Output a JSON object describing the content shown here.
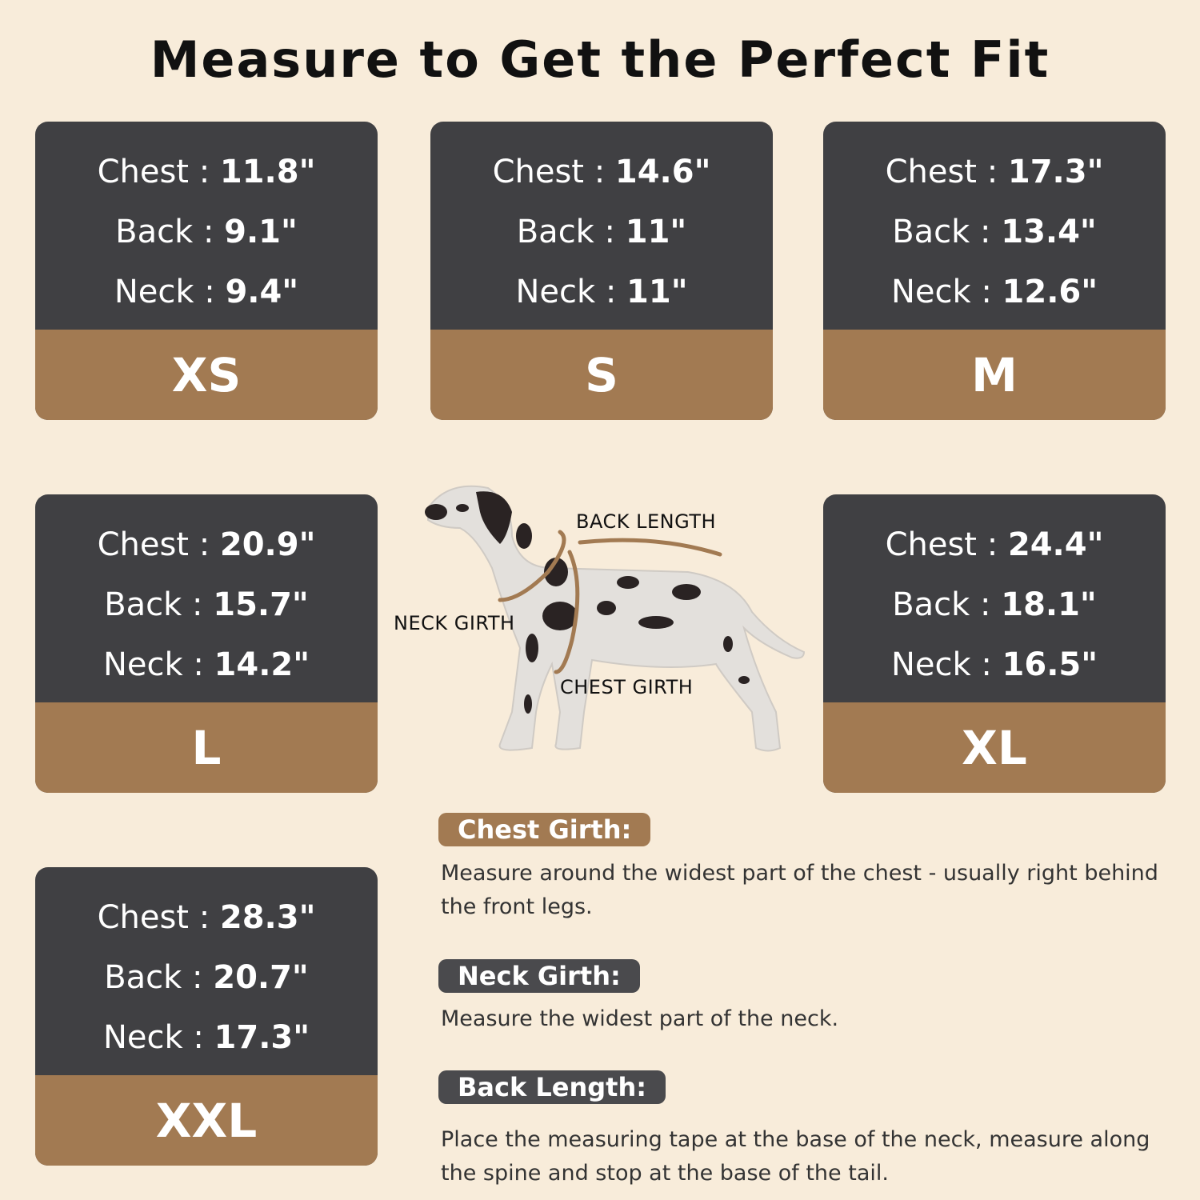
{
  "title": "Measure to Get the Perfect Fit",
  "colors": {
    "background": "#f8ecda",
    "card_dark": "#404043",
    "size_brown": "#a27a52",
    "neck_badge": "#4a4a4d"
  },
  "sizes": [
    {
      "size": "XS",
      "chest_label": "Chest",
      "chest": "11.8\"",
      "back_label": "Back",
      "back": "9.1\"",
      "neck_label": "Neck",
      "neck": "9.4\""
    },
    {
      "size": "S",
      "chest_label": "Chest",
      "chest": "14.6\"",
      "back_label": "Back",
      "back": "11\"",
      "neck_label": "Neck",
      "neck": "11\""
    },
    {
      "size": "M",
      "chest_label": "Chest",
      "chest": "17.3\"",
      "back_label": "Back",
      "back": "13.4\"",
      "neck_label": "Neck",
      "neck": "12.6\""
    },
    {
      "size": "L",
      "chest_label": "Chest",
      "chest": "20.9\"",
      "back_label": "Back",
      "back": "15.7\"",
      "neck_label": "Neck",
      "neck": "14.2\""
    },
    {
      "size": "XL",
      "chest_label": "Chest",
      "chest": "24.4\"",
      "back_label": "Back",
      "back": "18.1\"",
      "neck_label": "Neck",
      "neck": "16.5\""
    },
    {
      "size": "XXL",
      "chest_label": "Chest",
      "chest": "28.3\"",
      "back_label": "Back",
      "back": "20.7\"",
      "neck_label": "Neck",
      "neck": "17.3\""
    }
  ],
  "diagram": {
    "back_length": "BACK LENGTH",
    "neck_girth": "NECK GIRTH",
    "chest_girth": "CHEST GIRTH"
  },
  "instructions": [
    {
      "heading": "Chest Girth:",
      "text": "Measure around the widest part of the chest - usually right behind the front legs."
    },
    {
      "heading": "Neck Girth:",
      "text": "Measure the widest part of the neck."
    },
    {
      "heading": "Back Length:",
      "text": "Place the measuring tape at the base of the neck, measure along the spine and stop at the base of the tail."
    }
  ]
}
